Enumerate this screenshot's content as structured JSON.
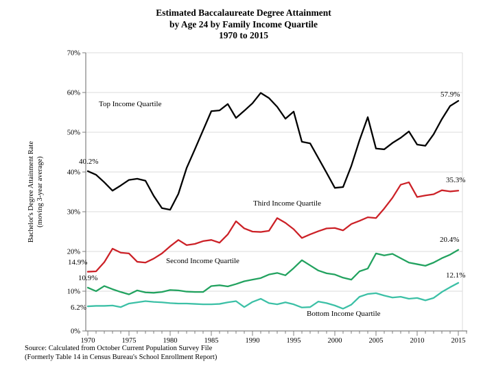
{
  "title": {
    "line1": "Estimated Baccalaureate Degree Attainment",
    "line2": "by Age 24 by Family Income Quartile",
    "line3": "1970 to 2015"
  },
  "y_axis": {
    "label_line1": "Bachelor's Degree Attainment Rate",
    "label_line2": "(moving 3-year average)"
  },
  "source": {
    "line1": "Source: Calculated from October Current Population Survey File",
    "line2": "(Formerly Table 14 in Census Bureau's School Enrollment Report)"
  },
  "chart_data": {
    "type": "line",
    "title": "Estimated Baccalaureate Degree Attainment by Age 24 by Family Income Quartile 1970 to 2015",
    "xlabel": "",
    "ylabel": "Bachelor's Degree Attainment Rate (moving 3-year average)",
    "x_start": 1970,
    "x_end": 2015,
    "x_step": 1,
    "ylim": [
      0,
      70
    ],
    "grid": "horizontal light-gray lines at each 10%",
    "legend_position": "inline text labels near each line",
    "y_ticks": [
      "0%",
      "10%",
      "20%",
      "30%",
      "40%",
      "50%",
      "60%",
      "70%"
    ],
    "x_ticks": [
      "1970",
      "1975",
      "1980",
      "1985",
      "1990",
      "1995",
      "2000",
      "2005",
      "2010",
      "2015"
    ],
    "series": [
      {
        "name": "Top Income Quartile",
        "color": "#000000",
        "start_label": "40.2%",
        "end_label": "57.9%",
        "values": [
          40.2,
          39.3,
          37.4,
          35.3,
          36.6,
          38.0,
          38.3,
          37.8,
          34.0,
          30.9,
          30.5,
          34.5,
          41.0,
          45.7,
          50.5,
          55.3,
          55.5,
          57.1,
          53.6,
          55.4,
          57.3,
          59.9,
          58.6,
          56.4,
          53.4,
          55.2,
          47.6,
          47.2,
          43.5,
          39.8,
          36.0,
          36.2,
          41.5,
          48.0,
          53.8,
          45.9,
          45.7,
          47.3,
          48.6,
          50.2,
          46.9,
          46.6,
          49.5,
          53.3,
          56.6,
          57.9
        ]
      },
      {
        "name": "Third Income Quartile",
        "color": "#cc2127",
        "start_label": "14.9%",
        "end_label": "35.3%",
        "values": [
          14.9,
          15.0,
          17.3,
          20.7,
          19.7,
          19.5,
          17.4,
          17.2,
          18.2,
          19.5,
          21.3,
          22.9,
          21.6,
          21.9,
          22.6,
          22.9,
          22.2,
          24.3,
          27.6,
          25.8,
          25.0,
          24.9,
          25.2,
          28.4,
          27.2,
          25.6,
          23.4,
          24.3,
          25.1,
          25.8,
          25.9,
          25.3,
          26.9,
          27.7,
          28.6,
          28.4,
          30.8,
          33.5,
          36.8,
          37.4,
          33.7,
          34.1,
          34.4,
          35.4,
          35.1,
          35.3
        ]
      },
      {
        "name": "Second Income Quartile",
        "color": "#22a25f",
        "start_label": "10.9%",
        "end_label": "20.4%",
        "values": [
          10.9,
          10.0,
          11.3,
          10.5,
          9.8,
          9.2,
          10.2,
          9.7,
          9.6,
          9.8,
          10.3,
          10.2,
          9.9,
          9.8,
          9.8,
          11.3,
          11.5,
          11.2,
          11.8,
          12.5,
          12.9,
          13.3,
          14.2,
          14.6,
          14.0,
          15.8,
          17.8,
          16.5,
          15.2,
          14.5,
          14.2,
          13.4,
          12.9,
          15.0,
          15.7,
          19.5,
          19.0,
          19.4,
          18.3,
          17.2,
          16.8,
          16.4,
          17.2,
          18.3,
          19.2,
          20.4
        ]
      },
      {
        "name": "Bottom Income Quartile",
        "color": "#3cc0a6",
        "start_label": "6.2%",
        "end_label": "12.1%",
        "values": [
          6.2,
          6.3,
          6.3,
          6.4,
          6.0,
          6.9,
          7.2,
          7.5,
          7.3,
          7.2,
          7.0,
          6.9,
          6.9,
          6.8,
          6.7,
          6.7,
          6.8,
          7.2,
          7.5,
          6.0,
          7.3,
          8.1,
          7.0,
          6.7,
          7.2,
          6.7,
          5.9,
          6.0,
          7.4,
          7.0,
          6.4,
          5.6,
          6.6,
          8.6,
          9.3,
          9.5,
          8.9,
          8.4,
          8.6,
          8.1,
          8.3,
          7.7,
          8.3,
          9.8,
          11.0,
          12.1
        ]
      }
    ]
  }
}
